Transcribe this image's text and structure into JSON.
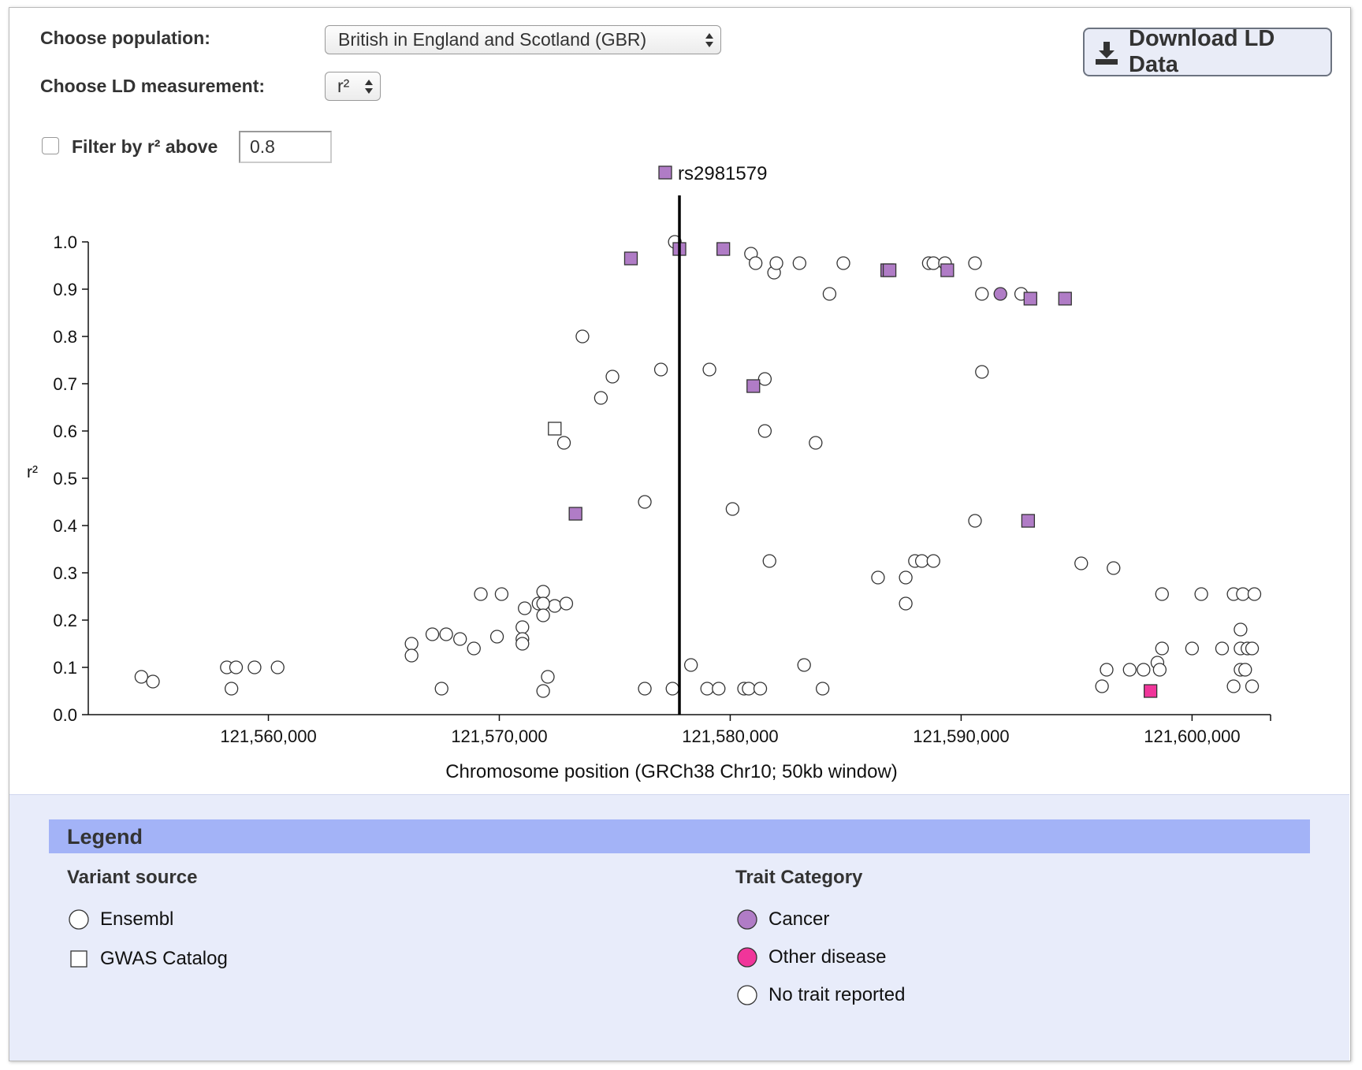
{
  "controls": {
    "population_label": "Choose population:",
    "population_value": "British in England and Scotland (GBR)",
    "measure_label": "Choose LD measurement:",
    "measure_value": "r²",
    "download_button": "Download LD Data",
    "filter_label": "Filter by r² above",
    "filter_value": "0.8"
  },
  "chart_data": {
    "type": "scatter",
    "xlabel": "Chromosome position (GRCh38 Chr10; 50kb window)",
    "ylabel": "r²",
    "xlim": [
      121552200,
      121603400
    ],
    "ylim": [
      0,
      1
    ],
    "xticks": [
      {
        "value": 121560000,
        "label": "121,560,000"
      },
      {
        "value": 121570000,
        "label": "121,570,000"
      },
      {
        "value": 121580000,
        "label": "121,580,000"
      },
      {
        "value": 121590000,
        "label": "121,590,000"
      },
      {
        "value": 121600000,
        "label": "121,600,000"
      }
    ],
    "yticks": [
      {
        "value": 0,
        "label": "0.0"
      },
      0.1,
      0.2,
      0.3,
      0.4,
      0.5,
      0.6,
      0.7,
      0.8,
      0.9,
      {
        "value": 1,
        "label": "1.0"
      }
    ],
    "lead": {
      "label": "rs2981579",
      "x": 121577800,
      "shape": "square",
      "color": "#b07cc6"
    },
    "series": [
      {
        "shape": "circle",
        "color": "#ffffff",
        "x": [
          121554500,
          121555000,
          121558200,
          121558600,
          121559400,
          121560400,
          121558400,
          121566200,
          121566200,
          121567100,
          121567700,
          121567500,
          121568300,
          121568900,
          121569200,
          121570100,
          121569900,
          121571000,
          121571000,
          121571000,
          121571100,
          121571700,
          121571900,
          121572400,
          121572900,
          121571900,
          121571900,
          121572100,
          121571900,
          121572800,
          121573600,
          121574900,
          121574400,
          121576300,
          121576300,
          121577000,
          121577500,
          121577600,
          121578300,
          121579000,
          121579500,
          121580600,
          121580800,
          121581300,
          121579100,
          121580100,
          121580900,
          121581100,
          121581500,
          121581500,
          121581700,
          121581900,
          121582000,
          121583000,
          121583200,
          121583700,
          121584000,
          121584300,
          121584900,
          121586400,
          121587600,
          121587600,
          121588000,
          121588300,
          121588800,
          121588600,
          121588800,
          121589300,
          121590600,
          121590600,
          121590900,
          121590900,
          121592600,
          121595200,
          121596100,
          121596300,
          121596600,
          121597300,
          121597900,
          121598500,
          121598600,
          121598700,
          121598700,
          121600000,
          121600400,
          121601300,
          121601800,
          121602200,
          121602700,
          121601800,
          121602100,
          121602100,
          121602400,
          121602600,
          121602100,
          121602300,
          121602600
        ],
        "values": [
          0.08,
          0.07,
          0.1,
          0.1,
          0.1,
          0.1,
          0.055,
          0.15,
          0.125,
          0.17,
          0.17,
          0.055,
          0.16,
          0.14,
          0.255,
          0.255,
          0.165,
          0.185,
          0.16,
          0.15,
          0.225,
          0.235,
          0.26,
          0.23,
          0.235,
          0.235,
          0.21,
          0.08,
          0.05,
          0.575,
          0.8,
          0.715,
          0.67,
          0.45,
          0.055,
          0.73,
          0.055,
          1.0,
          0.105,
          0.055,
          0.055,
          0.055,
          0.055,
          0.055,
          0.73,
          0.435,
          0.975,
          0.955,
          0.71,
          0.6,
          0.325,
          0.935,
          0.955,
          0.955,
          0.105,
          0.575,
          0.055,
          0.89,
          0.955,
          0.29,
          0.29,
          0.235,
          0.325,
          0.325,
          0.325,
          0.955,
          0.955,
          0.955,
          0.955,
          0.41,
          0.89,
          0.725,
          0.89,
          0.32,
          0.06,
          0.095,
          0.31,
          0.095,
          0.095,
          0.11,
          0.095,
          0.255,
          0.14,
          0.14,
          0.255,
          0.14,
          0.255,
          0.255,
          0.255,
          0.06,
          0.18,
          0.14,
          0.14,
          0.14,
          0.095,
          0.095,
          0.06
        ]
      },
      {
        "shape": "square",
        "color": "#ffffff",
        "x": [
          121572400
        ],
        "values": [
          0.605
        ]
      },
      {
        "shape": "square",
        "color": "#b07cc6",
        "x": [
          121575700,
          121577800,
          121579700,
          121581000,
          121573300,
          121586800,
          121586900,
          121589400,
          121593000,
          121594500,
          121592900
        ],
        "values": [
          0.965,
          0.985,
          0.985,
          0.695,
          0.425,
          0.94,
          0.94,
          0.94,
          0.88,
          0.88,
          0.41
        ]
      },
      {
        "shape": "circle",
        "color": "#b07cc6",
        "x": [
          121591700
        ],
        "values": [
          0.89
        ]
      },
      {
        "shape": "square",
        "color": "#f0359a",
        "x": [
          121598200
        ],
        "values": [
          0.05
        ]
      }
    ]
  },
  "legend": {
    "title": "Legend",
    "sections": [
      {
        "title": "Variant source",
        "items": [
          {
            "label": "Ensembl",
            "shape": "circle",
            "color": "#ffffff"
          },
          {
            "label": "GWAS Catalog",
            "shape": "square",
            "color": "#ffffff"
          }
        ]
      },
      {
        "title": "Trait Category",
        "items": [
          {
            "label": "Cancer",
            "shape": "circle",
            "color": "#b07cc6"
          },
          {
            "label": "Other disease",
            "shape": "circle",
            "color": "#f0359a"
          },
          {
            "label": "No trait reported",
            "shape": "circle",
            "color": "#ffffff"
          }
        ]
      }
    ]
  }
}
